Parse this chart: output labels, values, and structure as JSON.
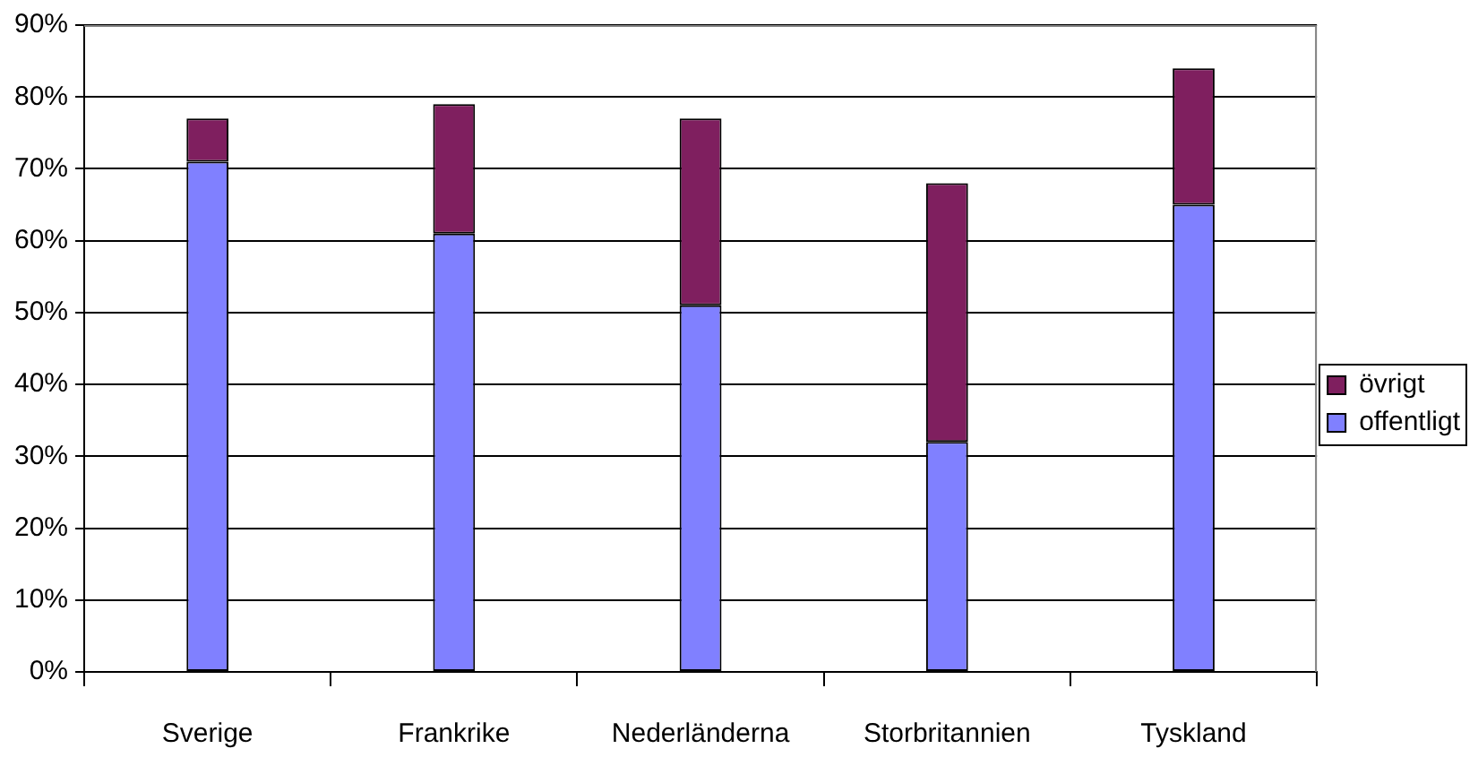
{
  "chart_data": {
    "type": "bar",
    "categories": [
      "Sverige",
      "Frankrike",
      "Nederländerna",
      "Storbritannien",
      "Tyskland"
    ],
    "series": [
      {
        "name": "offentligt",
        "color": "#8080ff",
        "values": [
          71,
          61,
          51,
          32,
          65
        ]
      },
      {
        "name": "övrigt",
        "color": "#7f1f5f",
        "values": [
          6,
          18,
          26,
          36,
          19
        ]
      }
    ],
    "stacked": true,
    "ylim": [
      0,
      90
    ],
    "yticks": [
      {
        "value": 0,
        "label": "0%"
      },
      {
        "value": 10,
        "label": "10%"
      },
      {
        "value": 20,
        "label": "20%"
      },
      {
        "value": 30,
        "label": "30%"
      },
      {
        "value": 40,
        "label": "40%"
      },
      {
        "value": 50,
        "label": "50%"
      },
      {
        "value": 60,
        "label": "60%"
      },
      {
        "value": 70,
        "label": "70%"
      },
      {
        "value": 80,
        "label": "80%"
      },
      {
        "value": 90,
        "label": "90%"
      }
    ],
    "grid": "y",
    "legend": "right"
  }
}
